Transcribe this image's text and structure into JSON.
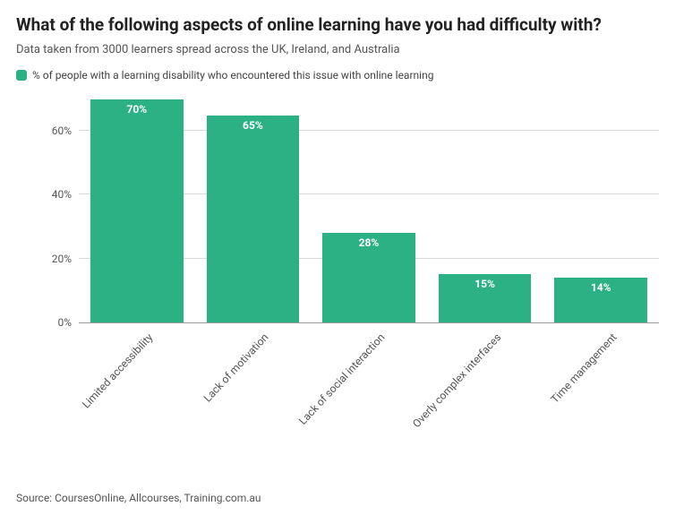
{
  "title": "What of the following aspects of online learning have you had difficulty with?",
  "subtitle": "Data taken from 3000 learners spread across the UK, Ireland, and Australia",
  "legend": {
    "label": "% of people with a learning disability who encountered this issue with online learning",
    "swatch_color": "#2bb183"
  },
  "chart": {
    "type": "bar",
    "categories": [
      "Limited accessibility",
      "Lack of motivation",
      "Lack of social interaction",
      "Overly complex interfaces",
      "Time management"
    ],
    "values": [
      70,
      65,
      28,
      15,
      14
    ],
    "bar_labels": [
      "70%",
      "65%",
      "28%",
      "15%",
      "14%"
    ],
    "bar_color": "#2bb183",
    "bar_label_color": "#ffffff",
    "bar_label_fontsize": 12,
    "bar_label_fontweight": 700,
    "bar_width": 0.8,
    "ylim": [
      0,
      70
    ],
    "yticks": [
      0,
      20,
      40,
      60
    ],
    "ytick_labels": [
      "0%",
      "20%",
      "40%",
      "60%"
    ],
    "ytick_fontsize": 12,
    "ytick_color": "#555555",
    "xlabel_fontsize": 12,
    "xlabel_color": "#555555",
    "xlabel_rotation": -47,
    "grid_color": "#d8d8d8",
    "axis_color": "#999999",
    "background_color": "#ffffff",
    "title_fontsize": 19,
    "title_fontweight": 700,
    "title_color": "#222222",
    "subtitle_fontsize": 13,
    "subtitle_color": "#555555",
    "legend_fontsize": 12,
    "legend_color": "#444444"
  },
  "source": "Source: CoursesOnline, Allcourses, Training.com.au"
}
